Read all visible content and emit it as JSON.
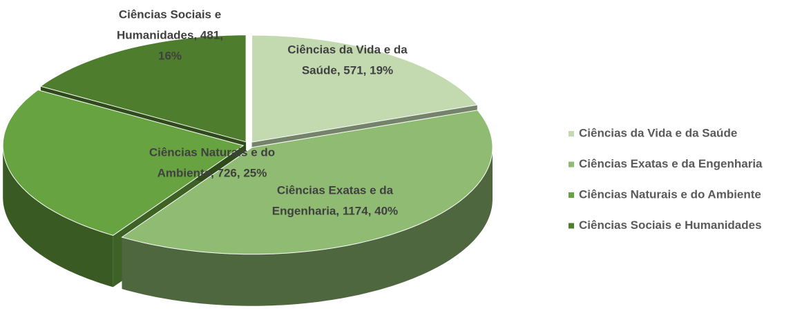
{
  "chart_data": {
    "type": "pie3d",
    "categories": [
      "Ciências da Vida e da Saúde",
      "Ciências Exatas e da Engenharia",
      "Ciências Naturais e do Ambiente",
      "Ciências Sociais e Humanidades"
    ],
    "values": [
      571,
      1174,
      726,
      481
    ],
    "value_labels": [
      [
        "Ciências da Vida e da",
        "Saúde, 571, 19%"
      ],
      [
        "Ciências Exatas e da",
        "Engenharia, 1174, 40%"
      ],
      [
        "Ciências Naturais e do",
        "Ambiente, 726, 25%"
      ],
      [
        "Ciências Sociais e",
        "Humanidades, 481,",
        "16%"
      ]
    ],
    "colors": [
      "#c3dab0",
      "#8fbb73",
      "#67a340",
      "#4e7d2e"
    ],
    "legend": "right"
  }
}
